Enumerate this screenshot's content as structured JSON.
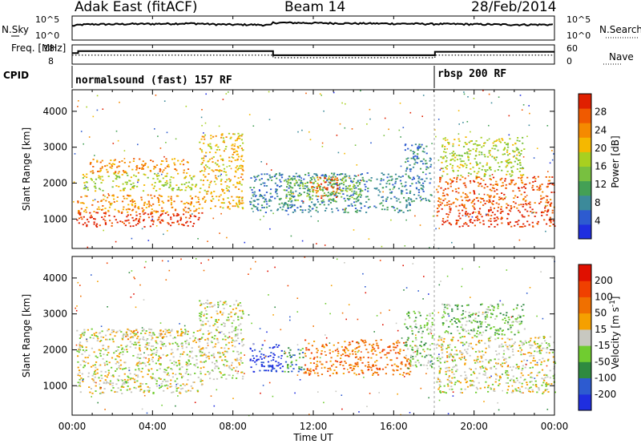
{
  "header": {
    "station": "Adak East (fitACF)",
    "beam": "Beam 14",
    "date": "28/Feb/2014"
  },
  "chart_data": [
    {
      "type": "line",
      "name": "nsky-nsearch",
      "ylabel_left": "N.Sky",
      "ylabel_right": "N.Search",
      "yticks_left": [
        "10^5",
        "10^0"
      ],
      "yticks_right": [
        "10^5",
        "10^0"
      ],
      "xlim_hours": [
        0,
        24
      ],
      "series": [
        {
          "x_hours": [
            0,
            0.5,
            1,
            2,
            3,
            4,
            5,
            6,
            7,
            8,
            9,
            9.9,
            10,
            12,
            14,
            16,
            18,
            20,
            22,
            24
          ],
          "values": [
            1000,
            2000,
            2500,
            2500,
            3000,
            3000,
            3500,
            4000,
            2500,
            2000,
            2000,
            1500,
            6000,
            5000,
            4000,
            3500,
            3000,
            2500,
            2000,
            2000
          ]
        }
      ]
    },
    {
      "type": "line",
      "name": "freq-nave",
      "ylabel_left": "Freq. [MHz]",
      "ylabel_right": "Nave",
      "yticks_left": [
        "18",
        "8"
      ],
      "yticks_right": [
        "60",
        "0"
      ],
      "xlim_hours": [
        0,
        24
      ],
      "series": [
        {
          "name": "Freq.",
          "x_hours": [
            0,
            0.3,
            9.9,
            10,
            18,
            18.05,
            24
          ],
          "values": [
            14,
            15.5,
            15.5,
            12.5,
            12.5,
            15,
            15
          ]
        },
        {
          "name": "Nave",
          "x_hours": [
            0,
            9.9,
            10,
            18,
            18.05,
            24
          ],
          "values": [
            28,
            28,
            20,
            20,
            28,
            28
          ]
        }
      ]
    },
    {
      "type": "table",
      "name": "cpid",
      "label": "CPID",
      "segments": [
        {
          "start_hours": 0,
          "end_hours": 18,
          "text": "normalsound (fast) 157 RF"
        },
        {
          "start_hours": 18,
          "end_hours": 24,
          "text": "rbsp 200 RF"
        }
      ]
    },
    {
      "type": "heatmap",
      "name": "power",
      "ylabel": "Slant Range [km]",
      "yticks": [
        1000,
        2000,
        3000,
        4000
      ],
      "ylim": [
        180,
        4600
      ],
      "xlim_hours": [
        0,
        24
      ],
      "colorbar_label": "Power [dB]",
      "colorbar_ticks": [
        "28",
        "24",
        "20",
        "16",
        "12",
        "8",
        "4"
      ],
      "colors": [
        "#1f2ee0",
        "#2d5bd0",
        "#3c8a9a",
        "#44a055",
        "#78c040",
        "#a8d020",
        "#f5b800",
        "#f58a00",
        "#f05a00",
        "#e02000"
      ],
      "regions": [
        {
          "t0": 0.2,
          "t1": 6.5,
          "r0": 800,
          "r1": 1200,
          "level": 9
        },
        {
          "t0": 0.2,
          "t1": 6.5,
          "r0": 1200,
          "r1": 1700,
          "level": 7
        },
        {
          "t0": 0.5,
          "t1": 6.2,
          "r0": 1800,
          "r1": 2300,
          "level": 5
        },
        {
          "t0": 0.8,
          "t1": 5.8,
          "r0": 2300,
          "r1": 2700,
          "level": 7
        },
        {
          "t0": 6.3,
          "t1": 8.5,
          "r0": 1300,
          "r1": 3400,
          "level": 6
        },
        {
          "t0": 8.8,
          "t1": 16.8,
          "r0": 1200,
          "r1": 2300,
          "level": 2
        },
        {
          "t0": 10.5,
          "t1": 14.5,
          "r0": 1500,
          "r1": 2200,
          "level": 4
        },
        {
          "t0": 11.8,
          "t1": 13.2,
          "r0": 1600,
          "r1": 2200,
          "level": 8
        },
        {
          "t0": 16.5,
          "t1": 17.9,
          "r0": 1500,
          "r1": 3100,
          "level": 2
        },
        {
          "t0": 18.1,
          "t1": 24,
          "r0": 800,
          "r1": 1300,
          "level": 9
        },
        {
          "t0": 18.1,
          "t1": 24,
          "r0": 1300,
          "r1": 2200,
          "level": 8
        },
        {
          "t0": 18.3,
          "t1": 22.5,
          "r0": 2200,
          "r1": 3300,
          "level": 5
        }
      ]
    },
    {
      "type": "heatmap",
      "name": "velocity",
      "ylabel": "Slant Range [km]",
      "yticks": [
        1000,
        2000,
        3000,
        4000
      ],
      "ylim": [
        180,
        4600
      ],
      "xlim_hours": [
        0,
        24
      ],
      "colorbar_label": "Velocity [m s^-1]",
      "colorbar_ticks": [
        "200",
        "100",
        "50",
        "15",
        "-15",
        "-50",
        "-100",
        "-200"
      ],
      "colors": [
        "#1f2ee0",
        "#2d5bd0",
        "#2f8a40",
        "#70cc30",
        "#c8c8c0",
        "#f5a000",
        "#f07000",
        "#f04000",
        "#e01000"
      ],
      "regions": [
        {
          "t0": 0.2,
          "t1": 6.5,
          "r0": 800,
          "r1": 2600,
          "level": 4
        },
        {
          "t0": 2.5,
          "t1": 5.5,
          "r0": 2300,
          "r1": 2600,
          "level": 5
        },
        {
          "t0": 6.3,
          "t1": 8.5,
          "r0": 1200,
          "r1": 3400,
          "level": 4
        },
        {
          "t0": 8.8,
          "t1": 10.5,
          "r0": 1400,
          "r1": 2200,
          "level": 0
        },
        {
          "t0": 10.5,
          "t1": 11.5,
          "r0": 1400,
          "r1": 2100,
          "level": 2
        },
        {
          "t0": 11.5,
          "t1": 16.8,
          "r0": 1300,
          "r1": 2300,
          "level": 6
        },
        {
          "t0": 16.5,
          "t1": 17.9,
          "r0": 1500,
          "r1": 3100,
          "level": 3
        },
        {
          "t0": 18.1,
          "t1": 24,
          "r0": 800,
          "r1": 2400,
          "level": 4
        },
        {
          "t0": 18.3,
          "t1": 22.5,
          "r0": 2400,
          "r1": 3300,
          "level": 3
        }
      ]
    }
  ],
  "x_axis": {
    "label": "Time UT",
    "ticks": [
      "00:00",
      "04:00",
      "08:00",
      "12:00",
      "16:00",
      "20:00",
      "00:00"
    ]
  }
}
